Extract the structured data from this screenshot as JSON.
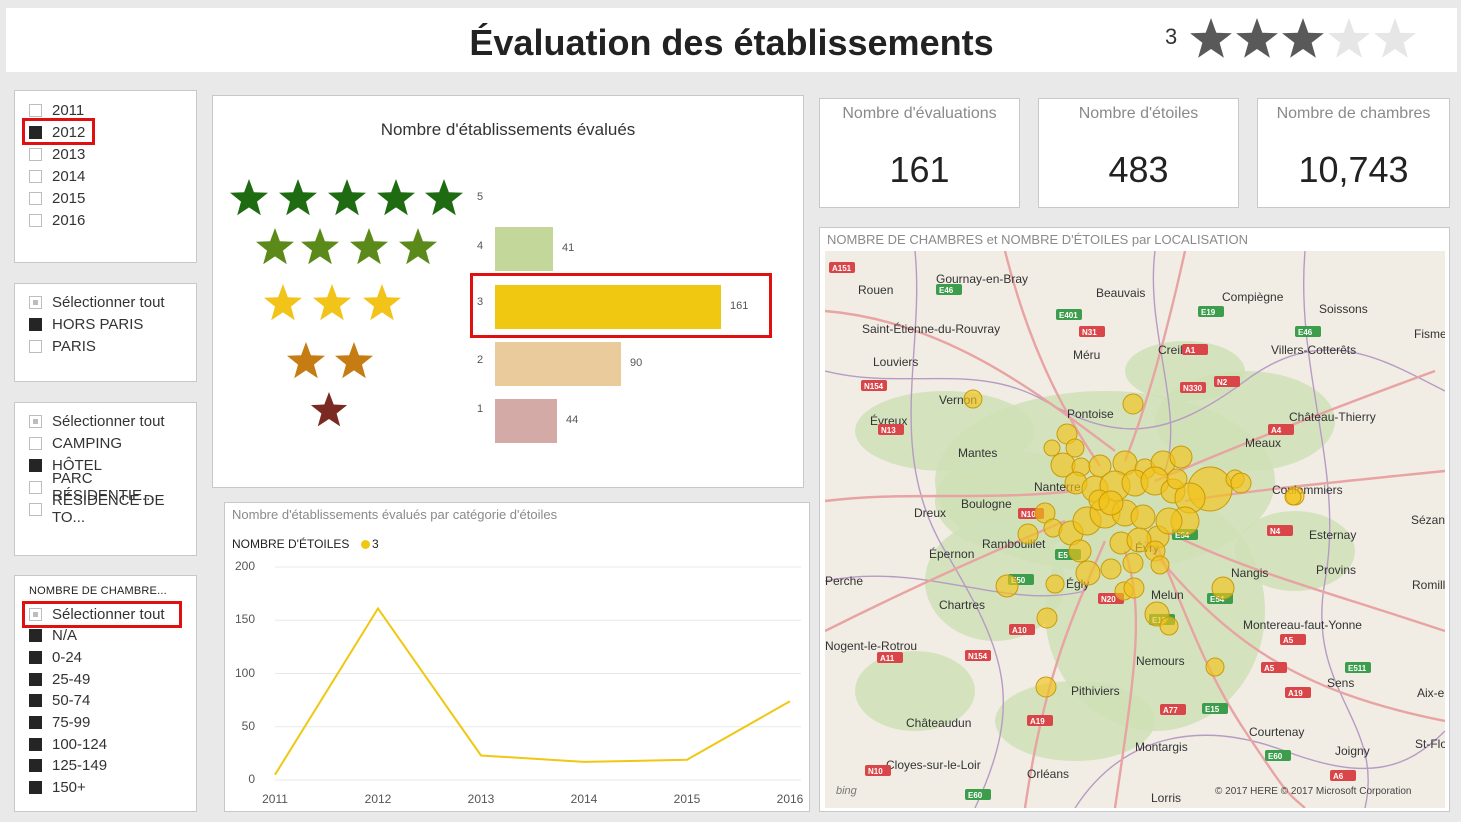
{
  "header": {
    "title": "Évaluation des établissements",
    "rating_value": "3",
    "rating_total": 5,
    "rating_filled": 3
  },
  "slicer_year": {
    "items": [
      {
        "label": "2011",
        "checked": false
      },
      {
        "label": "2012",
        "checked": true
      },
      {
        "label": "2013",
        "checked": false
      },
      {
        "label": "2014",
        "checked": false
      },
      {
        "label": "2015",
        "checked": false
      },
      {
        "label": "2016",
        "checked": false
      }
    ]
  },
  "slicer_zone": {
    "items": [
      {
        "label": "Sélectionner tout",
        "state": "partial"
      },
      {
        "label": "HORS PARIS",
        "state": "on"
      },
      {
        "label": "PARIS",
        "state": "off"
      }
    ]
  },
  "slicer_type": {
    "items": [
      {
        "label": "Sélectionner tout",
        "state": "partial"
      },
      {
        "label": "CAMPING",
        "state": "off"
      },
      {
        "label": "HÔTEL",
        "state": "on"
      },
      {
        "label": "PARC RÉSIDENTIE...",
        "state": "off"
      },
      {
        "label": "RÉSIDENCE DE TO...",
        "state": "off"
      }
    ]
  },
  "slicer_rooms": {
    "header": "NOMBRE DE CHAMBRE...",
    "items": [
      {
        "label": "Sélectionner tout",
        "state": "partial"
      },
      {
        "label": "N/A",
        "state": "on"
      },
      {
        "label": "0-24",
        "state": "on"
      },
      {
        "label": "25-49",
        "state": "on"
      },
      {
        "label": "50-74",
        "state": "on"
      },
      {
        "label": "75-99",
        "state": "on"
      },
      {
        "label": "100-124",
        "state": "on"
      },
      {
        "label": "125-149",
        "state": "on"
      },
      {
        "label": "150+",
        "state": "on"
      }
    ]
  },
  "kpis": [
    {
      "label": "Nombre d'évaluations",
      "value": "161"
    },
    {
      "label": "Nombre d'étoiles",
      "value": "483"
    },
    {
      "label": "Nombre de chambres",
      "value": "10,743"
    }
  ],
  "chart_data": [
    {
      "type": "bar",
      "title": "Nombre d'établissements évalués",
      "orientation": "horizontal",
      "categories": [
        "5",
        "4",
        "3",
        "2",
        "1"
      ],
      "values": [
        null,
        41,
        161,
        90,
        44
      ],
      "colors": [
        "#1e6b12",
        "#c4d79b",
        "#f0c711",
        "#e9cb9c",
        "#d3aaa6"
      ],
      "star_colors": [
        "#1e6b12",
        "#5b8a1b",
        "#f2c318",
        "#c57c13",
        "#7a2a22"
      ],
      "selected_category": "3"
    },
    {
      "type": "line",
      "title": "Nombre  d'établissements évalués par catégorie d'étoiles",
      "legend_title": "NOMBRE D'ÉTOILES",
      "series": [
        {
          "name": "3",
          "color": "#f0c711",
          "values": [
            5,
            161,
            23,
            17,
            19,
            74
          ]
        }
      ],
      "x": [
        "2011",
        "2012",
        "2013",
        "2014",
        "2015",
        "2016"
      ],
      "yticks": [
        "200",
        "150",
        "100",
        "50",
        "0"
      ],
      "ylim": [
        0,
        200
      ],
      "grid": true,
      "legend_position": "top-left"
    }
  ],
  "map": {
    "title": "NOMBRE DE CHAMBRES et NOMBRE D'ÉTOILES par LOCALISATION",
    "places": [
      "Gournay-en-Bray",
      "Rouen",
      "Beauvais",
      "Compiègne",
      "Soissons",
      "Saint-Étienne-du-Rouvray",
      "Creil",
      "Fismes",
      "Méru",
      "Villers-Cotterêts",
      "Louviers",
      "Vernon",
      "Pontoise",
      "Château-Thierry",
      "Évreux",
      "Meaux",
      "Mantes",
      "Nanterre",
      "Coulommiers",
      "Boulogne",
      "Dreux",
      "Sézanne",
      "Rambouillet",
      "Évry",
      "Esternay",
      "Épernon",
      "Nangis",
      "Provins",
      "Perche",
      "Égly",
      "Melun",
      "Chartres",
      "Romilly",
      "Montereau-faut-Yonne",
      "Nogent-le-Rotrou",
      "Nemours",
      "Sens",
      "Pithiviers",
      "Aix-en",
      "Châteaudun",
      "Courtenay",
      "Montargis",
      "Joigny",
      "St-Flo",
      "Cloyes-sur-le-Loir",
      "Orléans",
      "Lorris"
    ],
    "roads": [
      "A151",
      "E46",
      "N31",
      "E19",
      "A1",
      "E46",
      "E401",
      "N330",
      "N2",
      "N154",
      "N13",
      "A4",
      "N10",
      "N4",
      "E54",
      "E5",
      "N20",
      "E50",
      "A10",
      "E15",
      "E54",
      "N154",
      "A5",
      "A19",
      "E15",
      "A77",
      "E60",
      "N10",
      "A6",
      "E60",
      "A11",
      "E511",
      "A19",
      "A5"
    ],
    "copyright": "© 2017 HERE    © 2017 Microsoft Corporation",
    "provider": "bing"
  }
}
